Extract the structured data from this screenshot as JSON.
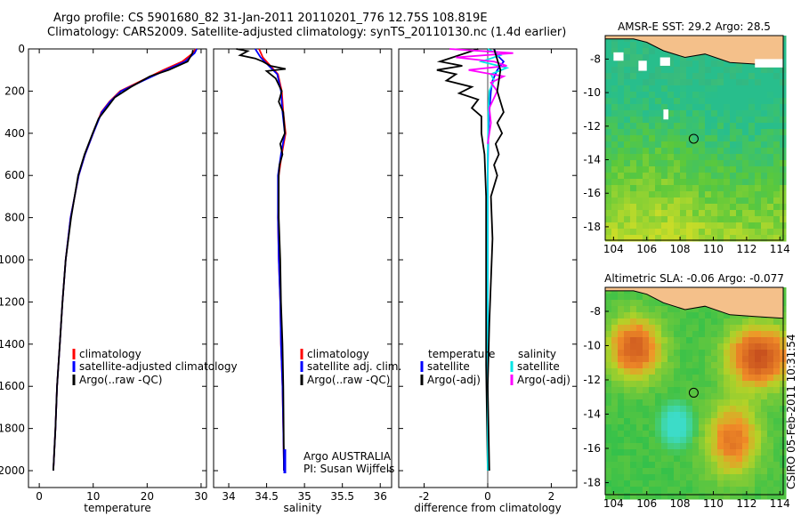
{
  "header": {
    "title_line1": "Argo profile: CS 5901680_82 31-Jan-2011 20110201_776 12.75S 108.819E",
    "title_line2": "Climatology: CARS2009. Satellite-adjusted climatology: synTS_20110130.nc (1.4d earlier)"
  },
  "footer_stamp": "CSIRO 05-Feb-2011 10:31:54",
  "colors": {
    "climatology": "#ff0000",
    "satellite": "#0000ff",
    "argo": "#000000",
    "salinity_satellite": "#00e5e5",
    "salinity_argo": "#ff00ff",
    "land": "#f4c08a"
  },
  "chart_data": [
    {
      "type": "line",
      "name": "temperature-profile",
      "xlabel": "temperature",
      "xticks": [
        "0",
        "10",
        "20",
        "30"
      ],
      "xlim": [
        -2,
        31
      ],
      "ylim": [
        0,
        2080
      ],
      "yticks": [
        "0",
        "200",
        "400",
        "600",
        "800",
        "1000",
        "1200",
        "1400",
        "1600",
        "1800",
        "2000"
      ],
      "legend": [
        "climatology",
        "satellite-adjusted climatology",
        "Argo(..raw -QC)"
      ],
      "series": [
        {
          "name": "climatology",
          "x": [
            29.0,
            28.5,
            26.5,
            23.0,
            19.0,
            15.0,
            13.0,
            11.5,
            10.0,
            8.5,
            7.3,
            5.8,
            4.9,
            4.3,
            3.8,
            3.3,
            3.0,
            2.6
          ],
          "y": [
            0,
            20,
            60,
            100,
            150,
            200,
            250,
            300,
            400,
            500,
            600,
            800,
            1000,
            1200,
            1400,
            1600,
            1800,
            2000
          ]
        },
        {
          "name": "satellite-adjusted climatology",
          "x": [
            29.2,
            28.8,
            27.0,
            23.5,
            19.3,
            15.2,
            13.1,
            11.6,
            10.0,
            8.5,
            7.3,
            5.8,
            4.9,
            4.3,
            3.8,
            3.3,
            3.0,
            2.6
          ],
          "y": [
            0,
            20,
            60,
            100,
            150,
            200,
            250,
            300,
            400,
            500,
            600,
            800,
            1000,
            1200,
            1400,
            1600,
            1800,
            2000
          ]
        },
        {
          "name": "Argo(..raw -QC)",
          "x": [
            28.5,
            28.4,
            27.5,
            24.0,
            20.5,
            17.0,
            14.0,
            12.5,
            11.0,
            9.9,
            8.4,
            7.2,
            5.9,
            4.9,
            4.3,
            3.8,
            3.3,
            3.0,
            2.6
          ],
          "y": [
            5,
            20,
            60,
            100,
            130,
            180,
            230,
            280,
            330,
            400,
            500,
            600,
            800,
            1000,
            1200,
            1400,
            1600,
            1800,
            2000
          ]
        }
      ]
    },
    {
      "type": "line",
      "name": "salinity-profile",
      "xlabel": "salinity",
      "xticks": [
        "34",
        "34.5",
        "35",
        "35.5",
        "36"
      ],
      "xlim": [
        33.8,
        36.15
      ],
      "ylim": [
        0,
        2080
      ],
      "legend": [
        "climatology",
        "satellite adj. clim.",
        "Argo(..raw -QC)"
      ],
      "annotations": [
        "Argo AUSTRALIA",
        "PI: Susan Wijffels"
      ],
      "series": [
        {
          "name": "climatology",
          "x": [
            34.4,
            34.45,
            34.55,
            34.65,
            34.7,
            34.72,
            34.75,
            34.7,
            34.66,
            34.65,
            34.66,
            34.68,
            34.69,
            34.71,
            34.72,
            34.73
          ],
          "y": [
            0,
            40,
            80,
            120,
            200,
            300,
            400,
            500,
            600,
            800,
            1000,
            1200,
            1400,
            1600,
            1800,
            2000
          ]
        },
        {
          "name": "satellite adj. clim.",
          "x": [
            34.35,
            34.42,
            34.53,
            34.64,
            34.69,
            34.71,
            34.74,
            34.69,
            34.65,
            34.65,
            34.66,
            34.68,
            34.69,
            34.71,
            34.72,
            34.73
          ],
          "y": [
            0,
            40,
            80,
            120,
            200,
            300,
            400,
            500,
            600,
            800,
            1000,
            1200,
            1400,
            1600,
            1800,
            2000
          ]
        },
        {
          "name": "Argo(..raw -QC)",
          "x": [
            34.1,
            34.25,
            34.15,
            34.35,
            34.45,
            34.55,
            34.75,
            34.5,
            34.62,
            34.7,
            34.66,
            34.72,
            34.74,
            34.68,
            34.71,
            34.67,
            34.66,
            34.66,
            34.68,
            34.69,
            34.71,
            34.72,
            34.73
          ],
          "y": [
            0,
            10,
            30,
            45,
            60,
            80,
            95,
            105,
            140,
            200,
            250,
            300,
            400,
            450,
            500,
            550,
            600,
            800,
            1000,
            1200,
            1400,
            1600,
            2000
          ]
        }
      ]
    },
    {
      "type": "line",
      "name": "difference-profile",
      "xlabel": "difference from climatology",
      "xticks": [
        "-2",
        "0",
        "2"
      ],
      "xlim": [
        -2.8,
        2.8
      ],
      "ylim": [
        0,
        2080
      ],
      "legend": [
        "temperature",
        "satellite",
        "Argo(-adj)",
        "salinity",
        "satellite",
        "Argo(-adj)"
      ],
      "series": [
        {
          "name": "temperature satellite",
          "x": [
            0.2,
            0.3,
            0.5,
            0.3,
            0.15,
            0.1,
            0.05,
            0.02,
            0.0,
            0.0,
            0.0,
            0.0,
            0.0,
            0.0
          ],
          "y": [
            0,
            30,
            60,
            100,
            150,
            200,
            300,
            400,
            600,
            800,
            1000,
            1400,
            1800,
            2000
          ]
        },
        {
          "name": "temperature Argo(-adj)",
          "x": [
            -0.3,
            -1.5,
            -0.8,
            -1.6,
            -1.0,
            -1.3,
            -0.5,
            -0.9,
            -0.3,
            -0.5,
            -0.2,
            -0.2,
            -0.1,
            -0.05,
            -0.05,
            -0.05,
            0.0
          ],
          "y": [
            0,
            60,
            80,
            100,
            120,
            150,
            180,
            210,
            240,
            280,
            320,
            400,
            500,
            700,
            1000,
            1500,
            2000
          ]
        },
        {
          "name": "salinity satellite",
          "x": [
            0.0,
            0.4,
            -0.2,
            0.6,
            0.1,
            0.2,
            0.05,
            0.02,
            0.0,
            0.0,
            0.0,
            0.0
          ],
          "y": [
            0,
            30,
            60,
            90,
            120,
            150,
            200,
            300,
            500,
            1000,
            1500,
            2000
          ]
        },
        {
          "name": "salinity Argo(-adj)",
          "x": [
            -1.2,
            0.8,
            -1.0,
            0.2,
            0.6,
            -0.6,
            0.5,
            0.1,
            0.3,
            0.05,
            0.1,
            0.0
          ],
          "y": [
            0,
            20,
            40,
            60,
            80,
            100,
            130,
            160,
            200,
            280,
            350,
            450
          ]
        },
        {
          "name": "Argo salinity diff",
          "x": [
            0.2,
            0.4,
            0.3,
            0.5,
            0.3,
            0.45,
            0.25,
            0.35,
            0.2,
            0.3,
            0.1,
            0.15,
            0.1,
            0.05,
            0.0,
            0.05
          ],
          "y": [
            0,
            100,
            200,
            300,
            350,
            400,
            450,
            500,
            550,
            600,
            700,
            900,
            1100,
            1300,
            1600,
            2000
          ]
        }
      ]
    },
    {
      "type": "heatmap",
      "name": "sst-map",
      "title": "AMSR-E SST: 29.2 Argo: 28.5",
      "xticks": [
        "104",
        "106",
        "108",
        "110",
        "112",
        "114"
      ],
      "yticks": [
        "-8",
        "-10",
        "-12",
        "-14",
        "-16",
        "-18"
      ],
      "xlim": [
        103.5,
        114.2
      ],
      "ylim": [
        -18.8,
        -6.6
      ],
      "marker": {
        "lon": 108.819,
        "lat": -12.75
      }
    },
    {
      "type": "heatmap",
      "name": "sla-map",
      "title": "Altimetric SLA: -0.06 Argo: -0.077",
      "xticks": [
        "104",
        "106",
        "108",
        "110",
        "112",
        "114"
      ],
      "yticks": [
        "-8",
        "-10",
        "-12",
        "-14",
        "-16",
        "-18"
      ],
      "xlim": [
        103.5,
        114.2
      ],
      "ylim": [
        -18.7,
        -6.6
      ],
      "marker": {
        "lon": 108.819,
        "lat": -12.75
      }
    }
  ]
}
